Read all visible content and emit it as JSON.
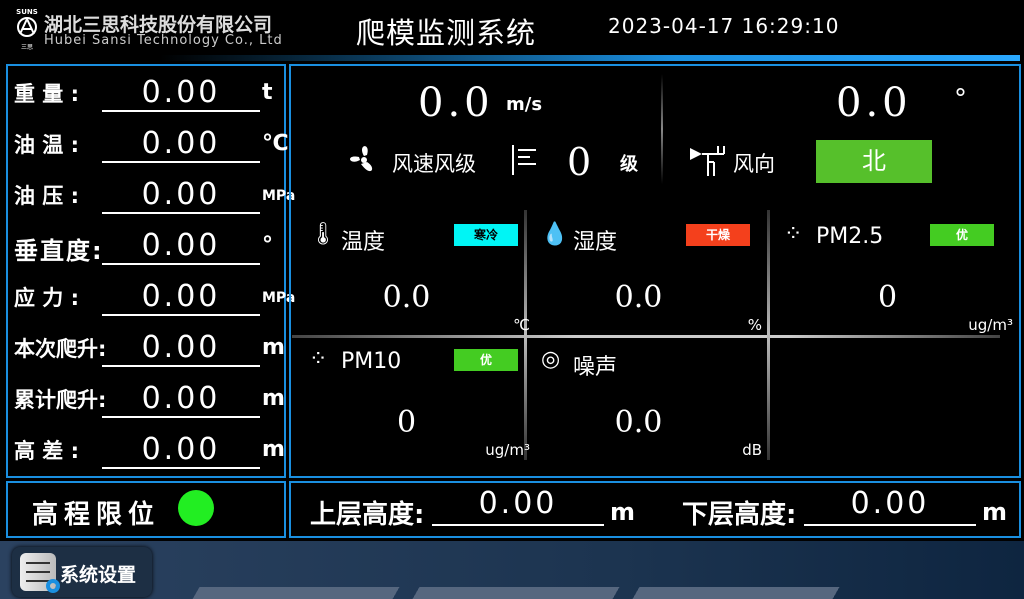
{
  "header": {
    "logo_top": "SUNS",
    "logo_bottom": "三思",
    "company_cn": "湖北三思科技股份有限公司",
    "company_en": "Hubei Sansi Technology Co., Ltd",
    "title": "爬模监测系统",
    "datetime": "2023-04-17 16:29:10"
  },
  "left": {
    "rows": [
      {
        "label": "重 量 :",
        "value": "0.00",
        "unit": "t"
      },
      {
        "label": "油 温 :",
        "value": "0.00",
        "unit": "℃"
      },
      {
        "label": "油 压 :",
        "value": "0.00",
        "unit": "MPa"
      },
      {
        "label": "垂直度:",
        "value": "0.00",
        "unit": "°"
      },
      {
        "label": "应 力 :",
        "value": "0.00",
        "unit": "MPa"
      },
      {
        "label": "本次爬升:",
        "value": "0.00",
        "unit": "m"
      },
      {
        "label": "累计爬升:",
        "value": "0.00",
        "unit": "m"
      },
      {
        "label": "高 差 :",
        "value": "0.00",
        "unit": "m"
      }
    ]
  },
  "wind": {
    "speed": "0.0",
    "speed_unit": "m/s",
    "speed_label": "风速风级",
    "level": "0",
    "level_unit": "级",
    "direction_deg": "0.0",
    "deg_unit": "°",
    "direction_label": "风向",
    "direction": "北",
    "direction_color": "#56c02b"
  },
  "env": [
    {
      "title": "温度",
      "badge": "寒冷",
      "badge_color": "#00f5f5",
      "value": "0.0",
      "unit": "℃",
      "icon": "thermometer-icon"
    },
    {
      "title": "湿度",
      "badge": "干燥",
      "badge_color": "#f4401c",
      "value": "0.0",
      "unit": "%",
      "icon": "droplet-icon"
    },
    {
      "title": "PM2.5",
      "badge": "优",
      "badge_color": "#44cc22",
      "value": "0",
      "unit": "ug/m³",
      "icon": "dust-icon"
    },
    {
      "title": "PM10",
      "badge": "优",
      "badge_color": "#44cc22",
      "value": "0",
      "unit": "ug/m³",
      "icon": "dust-icon"
    },
    {
      "title": "噪声",
      "value": "0.0",
      "unit": "dB",
      "icon": "noise-icon"
    }
  ],
  "limit": {
    "label": "高程限位",
    "status_color": "#22ee22"
  },
  "heights": {
    "upper_label": "上层高度:",
    "upper_value": "0.00",
    "upper_unit": "m",
    "lower_label": "下层高度:",
    "lower_value": "0.00",
    "lower_unit": "m"
  },
  "footer": {
    "settings_label": "系统设置"
  }
}
